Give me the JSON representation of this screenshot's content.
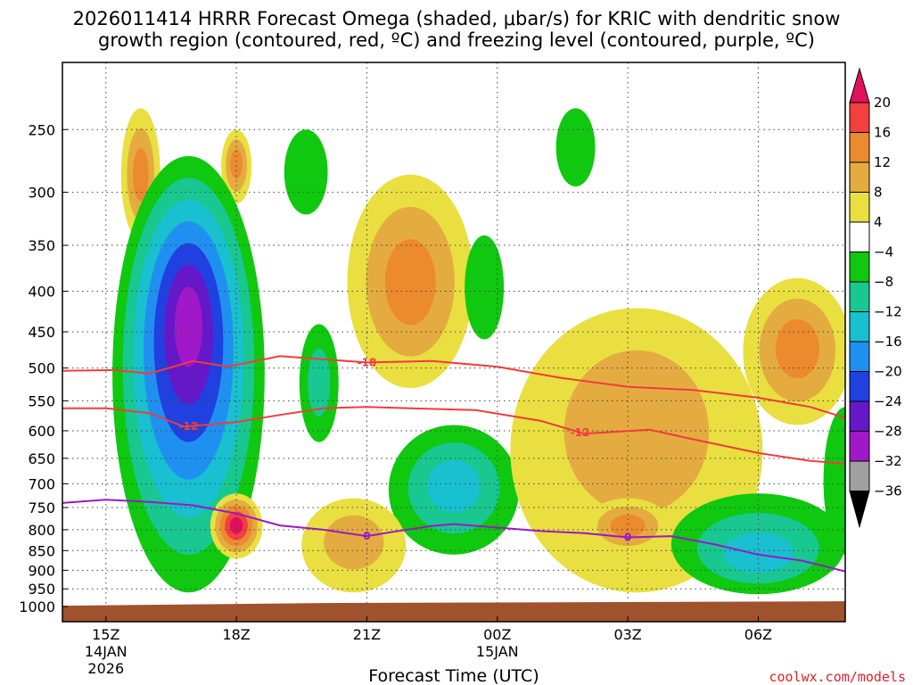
{
  "chart_data": {
    "type": "heatmap",
    "title_line1": "2026011414 HRRR Forecast Omega (shaded, μbar/s) for KRIC with dendritic snow",
    "title_line2": "growth region (contoured, red, ºC) and freezing level (contoured, purple, ºC)",
    "xlabel": "Forecast Time (UTC)",
    "ylabel": "Pressure (hPa)",
    "credit": "coolwx.com/models",
    "x_hours_range": [
      14.0,
      32.0
    ],
    "y_pressure_range": [
      1000,
      200
    ],
    "y_scale": "log",
    "x_ticks": [
      {
        "hour": 15,
        "label": "15Z",
        "sub1": "14JAN",
        "sub2": "2026"
      },
      {
        "hour": 18,
        "label": "18Z",
        "sub1": "",
        "sub2": ""
      },
      {
        "hour": 21,
        "label": "21Z",
        "sub1": "",
        "sub2": ""
      },
      {
        "hour": 24,
        "label": "00Z",
        "sub1": "15JAN",
        "sub2": ""
      },
      {
        "hour": 27,
        "label": "03Z",
        "sub1": "",
        "sub2": ""
      },
      {
        "hour": 30,
        "label": "06Z",
        "sub1": "",
        "sub2": ""
      }
    ],
    "y_ticks": [
      {
        "p": 250,
        "label": "250"
      },
      {
        "p": 300,
        "label": "300"
      },
      {
        "p": 350,
        "label": "350"
      },
      {
        "p": 400,
        "label": "400"
      },
      {
        "p": 450,
        "label": "450"
      },
      {
        "p": 500,
        "label": "500"
      },
      {
        "p": 550,
        "label": "550"
      },
      {
        "p": 600,
        "label": "600"
      },
      {
        "p": 650,
        "label": "650"
      },
      {
        "p": 700,
        "label": "700"
      },
      {
        "p": 750,
        "label": "750"
      },
      {
        "p": 800,
        "label": "800"
      },
      {
        "p": 850,
        "label": "850"
      },
      {
        "p": 900,
        "label": "900"
      },
      {
        "p": 950,
        "label": "950"
      },
      {
        "p": 1000,
        "label": "1000"
      }
    ],
    "colorbar": {
      "levels": [
        {
          "label": "20",
          "color": "#e0105e"
        },
        {
          "label": "16",
          "color": "#f23f3f"
        },
        {
          "label": "12",
          "color": "#ec8a2e"
        },
        {
          "label": "8",
          "color": "#e4ac40"
        },
        {
          "label": "4",
          "color": "#e9df40"
        },
        {
          "label": "−4",
          "color": "#ffffff"
        },
        {
          "label": "−8",
          "color": "#0fc80f"
        },
        {
          "label": "−12",
          "color": "#18c890"
        },
        {
          "label": "−16",
          "color": "#18c0d0"
        },
        {
          "label": "−20",
          "color": "#2090f0"
        },
        {
          "label": "−24",
          "color": "#2040e0"
        },
        {
          "label": "−28",
          "color": "#6418c8"
        },
        {
          "label": "−32",
          "color": "#a018c8"
        },
        {
          "label": "−36",
          "color": "#a0a0a0"
        }
      ],
      "bottom_color": "#000000"
    },
    "omega_blobs": [
      {
        "name": "upper-left-positive",
        "h": 15.8,
        "p": 285,
        "rx": 0.45,
        "ry_p": [
          235,
          345
        ],
        "shells": [
          "#e9df40",
          "#e4ac40",
          "#ec8a2e"
        ]
      },
      {
        "name": "upper-18z-positive",
        "h": 18.0,
        "p": 275,
        "rx": 0.35,
        "ry_p": [
          250,
          310
        ],
        "shells": [
          "#e9df40",
          "#e4ac40",
          "#ec8a2e"
        ]
      },
      {
        "name": "main-descent-column",
        "h": 16.9,
        "p": 430,
        "rx": 1.75,
        "ry_p": [
          270,
          960
        ],
        "shells": [
          "#0fc80f",
          "#18c890",
          "#18c0d0",
          "#2090f0",
          "#2040e0",
          "#6418c8",
          "#a018c8"
        ]
      },
      {
        "name": "low-18z-positive",
        "h": 18.0,
        "p": 790,
        "rx": 0.6,
        "ry_p": [
          720,
          870
        ],
        "shells": [
          "#e9df40",
          "#e4ac40",
          "#ec8a2e",
          "#f23f3f",
          "#e0105e"
        ]
      },
      {
        "name": "upper-19z-negative",
        "h": 19.6,
        "p": 280,
        "rx": 0.5,
        "ry_p": [
          250,
          320
        ],
        "shells": [
          "#0fc80f"
        ]
      },
      {
        "name": "mid-20z-negative",
        "h": 19.9,
        "p": 520,
        "rx": 0.45,
        "ry_p": [
          440,
          620
        ],
        "shells": [
          "#0fc80f",
          "#18c890"
        ]
      },
      {
        "name": "upper-21z-positive",
        "h": 22.0,
        "p": 390,
        "rx": 1.45,
        "ry_p": [
          285,
          530
        ],
        "shells": [
          "#e9df40",
          "#e4ac40",
          "#ec8a2e"
        ]
      },
      {
        "name": "low-23z-negative",
        "h": 23.0,
        "p": 700,
        "rx": 1.5,
        "ry_p": [
          590,
          860
        ],
        "shells": [
          "#0fc80f",
          "#18c890",
          "#18c0d0"
        ]
      },
      {
        "name": "low-21z-positive",
        "h": 20.7,
        "p": 820,
        "rx": 1.2,
        "ry_p": [
          730,
          960
        ],
        "shells": [
          "#e9df40",
          "#e4ac40"
        ]
      },
      {
        "name": "mid-23z-negative",
        "h": 23.7,
        "p": 390,
        "rx": 0.45,
        "ry_p": [
          340,
          460
        ],
        "shells": [
          "#0fc80f"
        ]
      },
      {
        "name": "upper-02z-negative",
        "h": 25.8,
        "p": 265,
        "rx": 0.45,
        "ry_p": [
          235,
          295
        ],
        "shells": [
          "#0fc80f"
        ]
      },
      {
        "name": "broad-02z-positive",
        "h": 27.2,
        "p": 560,
        "rx": 2.9,
        "ry_p": [
          420,
          960
        ],
        "shells": [
          "#e9df40",
          "#e4ac40"
        ]
      },
      {
        "name": "low-03z-positive",
        "h": 27.0,
        "p": 790,
        "rx": 1.0,
        "ry_p": [
          730,
          860
        ],
        "shells": [
          "#e9df40",
          "#e4ac40",
          "#ec8a2e"
        ]
      },
      {
        "name": "mid-07z-positive",
        "h": 30.9,
        "p": 470,
        "rx": 1.25,
        "ry_p": [
          385,
          590
        ],
        "shells": [
          "#e9df40",
          "#e4ac40",
          "#ec8a2e"
        ]
      },
      {
        "name": "low-06z-negative",
        "h": 30.0,
        "p": 870,
        "rx": 2.0,
        "ry_p": [
          720,
          965
        ],
        "shells": [
          "#0fc80f",
          "#18c890",
          "#18c0d0"
        ]
      },
      {
        "name": "right-edge-negative",
        "h": 32.0,
        "p": 700,
        "rx": 0.5,
        "ry_p": [
          560,
          860
        ],
        "shells": [
          "#0fc80f"
        ]
      }
    ],
    "dgz_contours": [
      {
        "label": "-18",
        "label_hour": 21.0,
        "points": [
          [
            14.0,
            504
          ],
          [
            15.2,
            503
          ],
          [
            16.0,
            508
          ],
          [
            17.0,
            490
          ],
          [
            17.8,
            498
          ],
          [
            19.0,
            483
          ],
          [
            21.0,
            492
          ],
          [
            22.5,
            490
          ],
          [
            24.0,
            498
          ],
          [
            25.5,
            515
          ],
          [
            27.0,
            528
          ],
          [
            28.5,
            533
          ],
          [
            30.0,
            545
          ],
          [
            31.2,
            560
          ],
          [
            32.0,
            578
          ]
        ]
      },
      {
        "label": "-12",
        "label_hour": 16.9,
        "points": [
          [
            14.0,
            562
          ],
          [
            15.0,
            562
          ],
          [
            16.0,
            570
          ],
          [
            16.8,
            593
          ],
          [
            18.0,
            585
          ],
          [
            19.0,
            573
          ],
          [
            20.0,
            562
          ],
          [
            21.0,
            560
          ],
          [
            22.0,
            562
          ],
          [
            23.5,
            565
          ],
          [
            25.0,
            583
          ],
          [
            26.0,
            605
          ],
          [
            27.5,
            598
          ],
          [
            28.5,
            615
          ],
          [
            30.0,
            640
          ],
          [
            31.2,
            655
          ],
          [
            32.0,
            660
          ]
        ]
      }
    ],
    "freezing_contour": {
      "label": "0",
      "label_hours": [
        21.0,
        27.0
      ],
      "points": [
        [
          14.0,
          740
        ],
        [
          15.0,
          733
        ],
        [
          16.0,
          738
        ],
        [
          17.0,
          745
        ],
        [
          18.0,
          763
        ],
        [
          19.0,
          790
        ],
        [
          20.0,
          800
        ],
        [
          21.0,
          815
        ],
        [
          21.6,
          805
        ],
        [
          22.5,
          791
        ],
        [
          23.0,
          787
        ],
        [
          24.0,
          795
        ],
        [
          25.0,
          803
        ],
        [
          26.0,
          808
        ],
        [
          27.0,
          818
        ],
        [
          28.0,
          815
        ],
        [
          29.0,
          835
        ],
        [
          30.0,
          860
        ],
        [
          31.0,
          875
        ],
        [
          32.0,
          903
        ]
      ]
    },
    "terrain": {
      "color": "#a0522d",
      "top_pressure": 990
    }
  }
}
